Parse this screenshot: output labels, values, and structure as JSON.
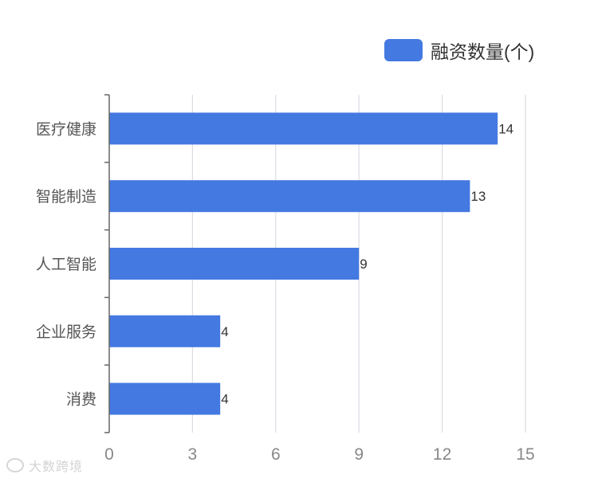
{
  "legend": {
    "label": "融资数量(个)"
  },
  "watermark": {
    "text": "大数跨境"
  },
  "colors": {
    "bar": "#4479e1",
    "grid": "#d9dde3",
    "axis": "#666666",
    "tick_text": "#888888",
    "category_text": "#555555",
    "value_text": "#333333"
  },
  "chart_data": {
    "type": "bar",
    "orientation": "horizontal",
    "categories": [
      "医疗健康",
      "智能制造",
      "人工智能",
      "企业服务",
      "消费"
    ],
    "series": [
      {
        "name": "融资数量(个)",
        "values": [
          14,
          13,
          9,
          4,
          4
        ]
      }
    ],
    "xlim": [
      0,
      15
    ],
    "xticks": [
      0,
      3,
      6,
      9,
      12,
      15
    ],
    "grid": true,
    "data_labels": true,
    "legend_position": "top-right",
    "title": "",
    "xlabel": "",
    "ylabel": ""
  }
}
